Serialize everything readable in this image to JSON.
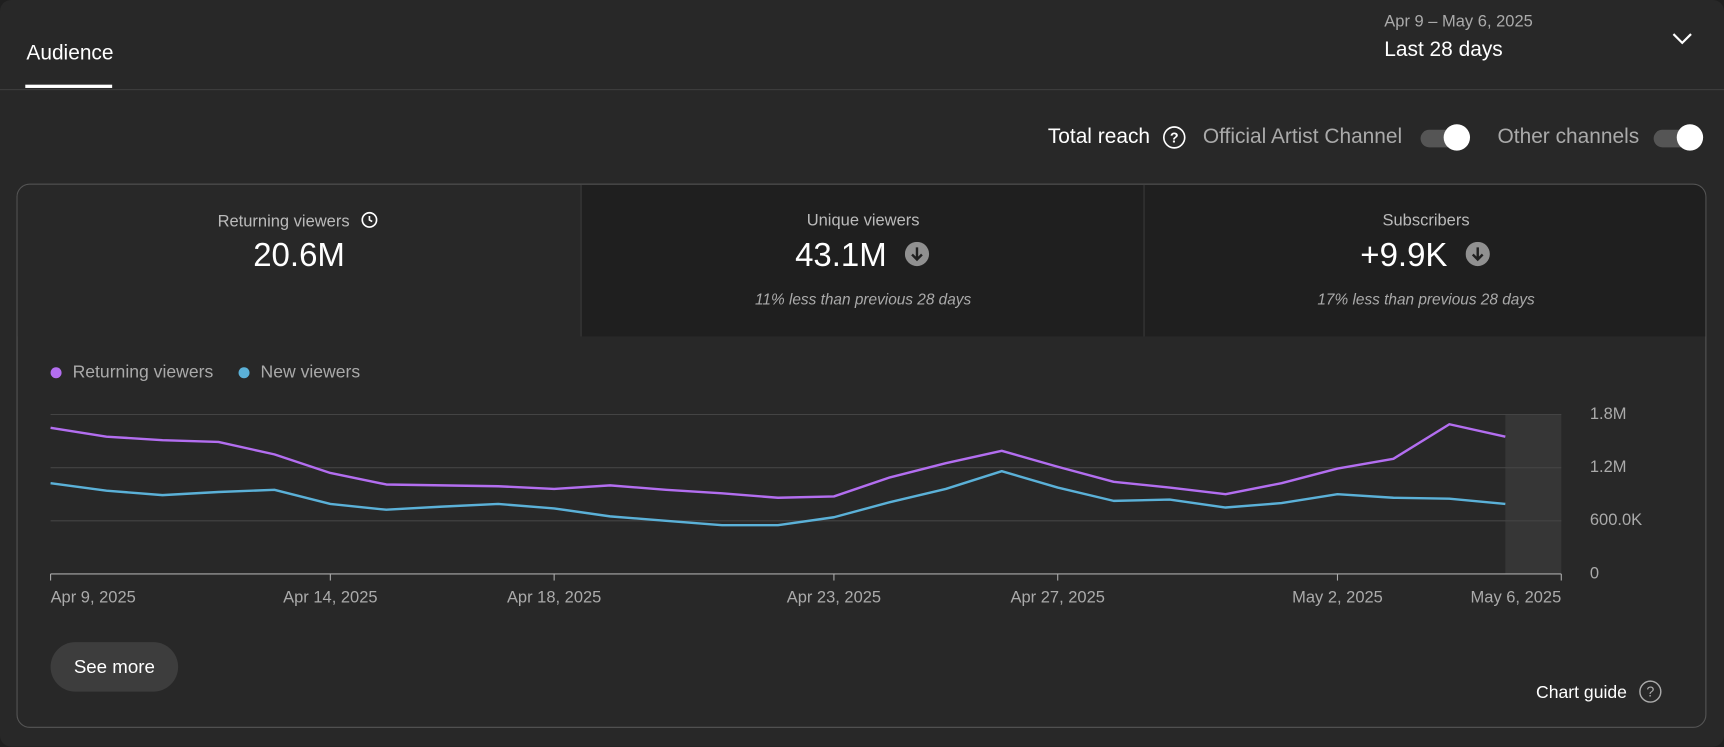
{
  "header": {
    "tab": "Audience",
    "date_range": "Apr 9 – May 6, 2025",
    "period": "Last 28 days"
  },
  "filters": {
    "total_reach": "Total reach",
    "toggles": [
      "Official Artist Channel",
      "Other channels"
    ]
  },
  "metrics": [
    {
      "label": "Returning viewers",
      "value": "20.6M"
    },
    {
      "label": "Unique viewers",
      "value": "43.1M",
      "note": "11% less than previous 28 days"
    },
    {
      "label": "Subscribers",
      "value": "+9.9K",
      "note": "17% less than previous 28 days"
    }
  ],
  "buttons": {
    "see_more": "See more",
    "chart_guide": "Chart guide"
  },
  "chart_data": {
    "type": "line",
    "x": [
      "2025-04-09",
      "2025-04-10",
      "2025-04-11",
      "2025-04-12",
      "2025-04-13",
      "2025-04-14",
      "2025-04-15",
      "2025-04-16",
      "2025-04-17",
      "2025-04-18",
      "2025-04-19",
      "2025-04-20",
      "2025-04-21",
      "2025-04-22",
      "2025-04-23",
      "2025-04-24",
      "2025-04-25",
      "2025-04-26",
      "2025-04-27",
      "2025-04-28",
      "2025-04-29",
      "2025-04-30",
      "2025-05-01",
      "2025-05-02",
      "2025-05-03",
      "2025-05-04",
      "2025-05-05"
    ],
    "series": [
      {
        "name": "Returning viewers",
        "color": "#b36ef0",
        "values": [
          1650000,
          1550000,
          1510000,
          1490000,
          1350000,
          1140000,
          1010000,
          1000000,
          990000,
          960000,
          1000000,
          950000,
          910000,
          860000,
          875000,
          1090000,
          1250000,
          1390000,
          1210000,
          1040000,
          975000,
          900000,
          1025000,
          1190000,
          1300000,
          1690000,
          1550000
        ]
      },
      {
        "name": "New viewers",
        "color": "#5bb1d8",
        "values": [
          1025000,
          940000,
          890000,
          925000,
          950000,
          790000,
          725000,
          760000,
          790000,
          740000,
          650000,
          600000,
          550000,
          550000,
          640000,
          810000,
          960000,
          1160000,
          975000,
          825000,
          840000,
          750000,
          800000,
          900000,
          860000,
          850000,
          790000
        ]
      }
    ],
    "xlim": [
      "2025-04-09",
      "2025-05-06"
    ],
    "xticks": [
      {
        "value": "2025-04-09",
        "label": "Apr 9, 2025"
      },
      {
        "value": "2025-04-14",
        "label": "Apr 14, 2025"
      },
      {
        "value": "2025-04-18",
        "label": "Apr 18, 2025"
      },
      {
        "value": "2025-04-23",
        "label": "Apr 23, 2025"
      },
      {
        "value": "2025-04-27",
        "label": "Apr 27, 2025"
      },
      {
        "value": "2025-05-02",
        "label": "May 2, 2025"
      },
      {
        "value": "2025-05-06",
        "label": "May 6, 2025"
      }
    ],
    "ylim": [
      0,
      1800000
    ],
    "yticks": [
      0,
      {
        "value": 600000,
        "label": "600.0K"
      },
      {
        "value": 1200000,
        "label": "1.2M"
      },
      {
        "value": 1800000,
        "label": "1.8M"
      }
    ],
    "grid": true
  }
}
